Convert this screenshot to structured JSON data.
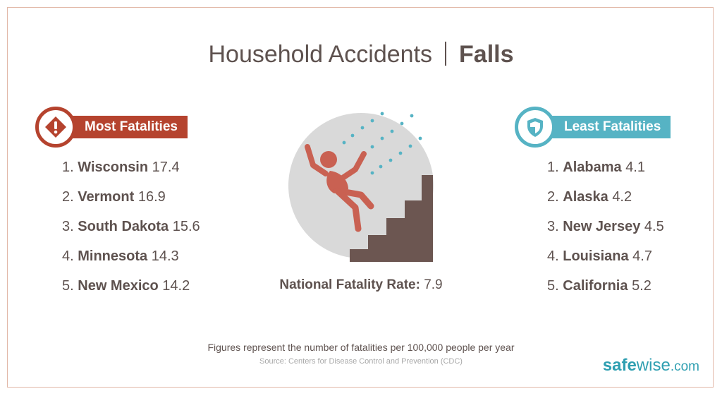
{
  "title": {
    "main": "Household Accidents",
    "sub": "Falls"
  },
  "most": {
    "label": "Most Fatalities",
    "icon": "warning-diamond-icon",
    "color": "#b5432e",
    "items": [
      {
        "num": "1.",
        "state": "Wisconsin",
        "value": "17.4"
      },
      {
        "num": "2.",
        "state": "Vermont",
        "value": "16.9"
      },
      {
        "num": "3.",
        "state": "South Dakota",
        "value": "15.6"
      },
      {
        "num": "4.",
        "state": "Minnesota",
        "value": "14.3"
      },
      {
        "num": "5.",
        "state": "New Mexico",
        "value": "14.2"
      }
    ]
  },
  "least": {
    "label": "Least Fatalities",
    "icon": "shield-icon",
    "color": "#56b3c4",
    "items": [
      {
        "num": "1.",
        "state": "Alabama",
        "value": "4.1"
      },
      {
        "num": "2.",
        "state": "Alaska",
        "value": "4.2"
      },
      {
        "num": "3.",
        "state": "New Jersey",
        "value": "4.5"
      },
      {
        "num": "4.",
        "state": "Louisiana",
        "value": "4.7"
      },
      {
        "num": "5.",
        "state": "California",
        "value": "5.2"
      }
    ]
  },
  "national": {
    "label": "National Fatality Rate:",
    "value": "7.9"
  },
  "footnote": "Figures represent the number of fatalities per 100,000 people per year",
  "source": "Source: Centers for Disease Control and Prevention (CDC)",
  "logo": {
    "part1": "safe",
    "part2": "wise",
    "part3": ".com"
  }
}
